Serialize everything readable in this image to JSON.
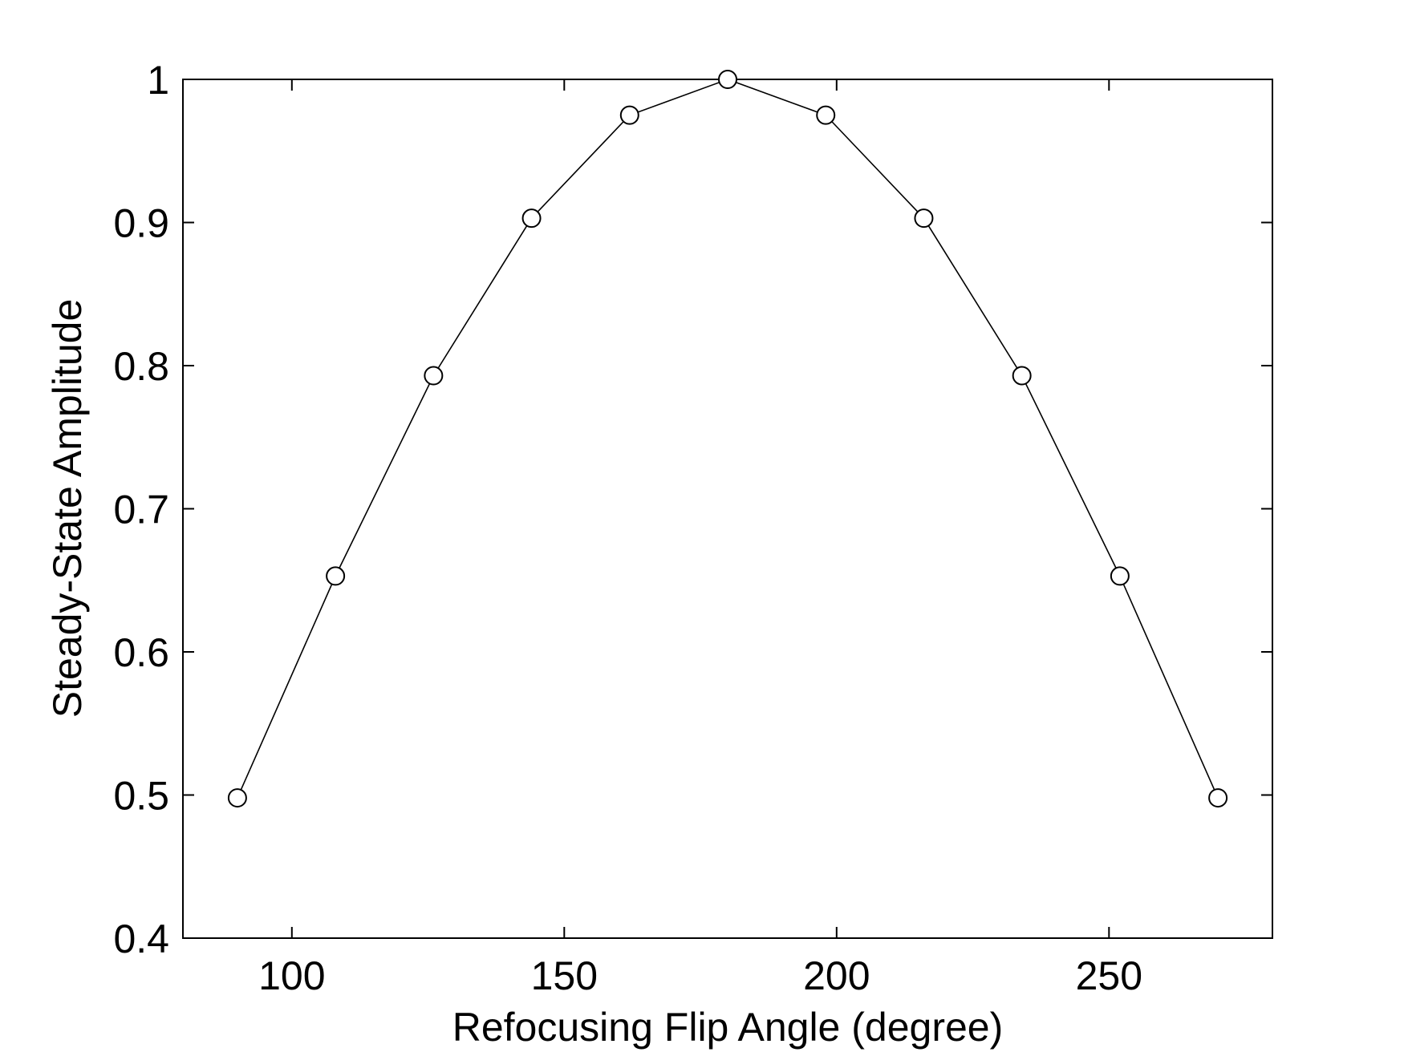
{
  "chart_data": {
    "type": "line",
    "title": "",
    "xlabel": "Refocusing Flip Angle (degree)",
    "ylabel": "Steady-State Amplitude",
    "xlim": [
      80,
      280
    ],
    "ylim": [
      0.4,
      1.0
    ],
    "xticks": [
      100,
      150,
      200,
      250
    ],
    "yticks": [
      0.4,
      0.5,
      0.6,
      0.7,
      0.8,
      0.9,
      1.0
    ],
    "xtick_labels": [
      "100",
      "150",
      "200",
      "250"
    ],
    "ytick_labels": [
      "0.4",
      "0.5",
      "0.6",
      "0.7",
      "0.8",
      "0.9",
      "1"
    ],
    "grid": false,
    "legend": "none",
    "series": [
      {
        "marker": "open-circle",
        "color": "#000000",
        "x": [
          90,
          108,
          126,
          144,
          162,
          180,
          198,
          216,
          234,
          252,
          270
        ],
        "y": [
          0.498,
          0.653,
          0.793,
          0.903,
          0.975,
          1.0,
          0.975,
          0.903,
          0.793,
          0.653,
          0.498
        ]
      }
    ]
  }
}
